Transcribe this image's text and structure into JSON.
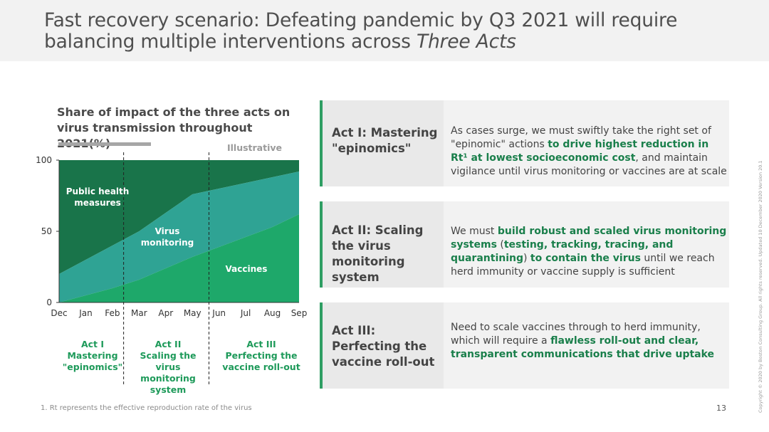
{
  "slide": {
    "title_part1": "Fast recovery scenario: Defeating pandemic by Q3 2021 will require balancing multiple interventions across ",
    "title_italic": "Three Acts",
    "footnote": "1. Rt represents the effective reproduction rate of the virus",
    "page_number": "13",
    "copyright": "Copyright © 2020 by Boston Consulting Group. All rights reserved. Updated 10 December 2020 Version 20.1"
  },
  "chart_data": {
    "type": "area",
    "title": "Share of impact of the three acts on virus transmission throughout 2021(%)",
    "tag": "Illustrative",
    "x": [
      "Dec",
      "Jan",
      "Feb",
      "Mar",
      "Apr",
      "May",
      "Jun",
      "Jul",
      "Aug",
      "Sep"
    ],
    "yticks": [
      0,
      50,
      100
    ],
    "ylim": [
      0,
      100
    ],
    "series": [
      {
        "name": "Vaccines",
        "values": [
          0,
          5,
          10,
          16,
          24,
          32,
          39,
          46,
          53,
          62
        ]
      },
      {
        "name": "Virus monitoring",
        "values": [
          20,
          30,
          40,
          50,
          63,
          76,
          80,
          84,
          88,
          92
        ]
      },
      {
        "name": "Public health measures",
        "values": [
          100,
          100,
          100,
          100,
          100,
          100,
          100,
          100,
          100,
          100
        ]
      }
    ],
    "area_labels": [
      "Public health measures",
      "Virus monitoring",
      "Vaccines"
    ],
    "colors": [
      "#1ea86a",
      "#2fa394",
      "#19744a"
    ],
    "acts": [
      {
        "lines": [
          "Act I",
          "Mastering",
          "\"epinomics\""
        ]
      },
      {
        "lines": [
          "Act II",
          "Scaling the virus",
          "monitoring",
          "system"
        ]
      },
      {
        "lines": [
          "Act III",
          "Perfecting the",
          "vaccine roll-out"
        ]
      }
    ]
  },
  "acts_panel": [
    {
      "heading": "Act I: Mastering \"epinomics\"",
      "body": [
        {
          "t": "As cases surge, we must swiftly take the right set of \"epinomic\" actions ",
          "b": false
        },
        {
          "t": "to drive highest reduction in Rt¹ at lowest socioeconomic cost",
          "b": true
        },
        {
          "t": ", and maintain vigilance until virus monitoring or vaccines are at scale",
          "b": false
        }
      ]
    },
    {
      "heading": "Act II: Scaling the virus monitoring system",
      "body": [
        {
          "t": "We must ",
          "b": false
        },
        {
          "t": "build robust and scaled virus monitoring systems",
          "b": true
        },
        {
          "t": " (",
          "b": false
        },
        {
          "t": "testing, tracking, tracing, and quarantining",
          "b": true
        },
        {
          "t": ") ",
          "b": false
        },
        {
          "t": "to contain the virus",
          "b": true
        },
        {
          "t": " until we reach herd immunity or vaccine supply is sufficient",
          "b": false
        }
      ]
    },
    {
      "heading": "Act III: Perfecting the vaccine roll-out",
      "body": [
        {
          "t": "Need to scale vaccines through to herd immunity, which will require a ",
          "b": false
        },
        {
          "t": "flawless roll-out and clear, transparent communications that drive uptake",
          "b": true
        }
      ]
    }
  ]
}
